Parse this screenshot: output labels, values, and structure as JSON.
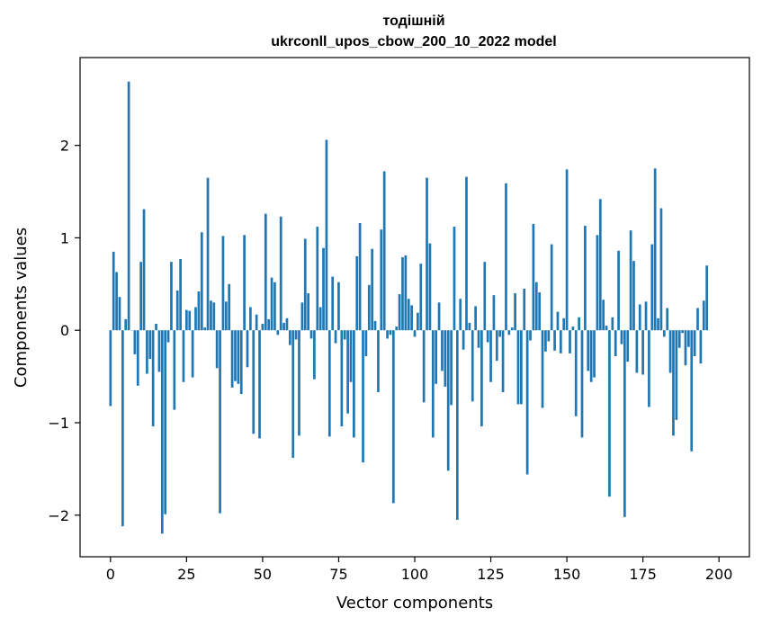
{
  "chart_data": {
    "type": "bar",
    "title_line1": "тодішній",
    "title_line2": "ukrconll_upos_cbow_200_10_2022 model",
    "xlabel": "Vector components",
    "ylabel": "Components values",
    "xlim": [
      -10,
      210
    ],
    "ylim": [
      -2.45,
      2.95
    ],
    "xticks": [
      0,
      25,
      50,
      75,
      100,
      125,
      150,
      175,
      200
    ],
    "yticks": [
      -2,
      -1,
      0,
      1,
      2
    ],
    "ytick_labels": [
      "−2",
      "−1",
      "0",
      "1",
      "2"
    ],
    "bar_color": "#1f77b4",
    "grid": false,
    "legend": "none",
    "values": [
      -0.82,
      0.85,
      0.63,
      0.36,
      -2.12,
      0.12,
      2.69,
      0.0,
      -0.26,
      -0.6,
      0.74,
      1.31,
      -0.47,
      -0.31,
      -1.04,
      0.07,
      -0.45,
      -2.2,
      -1.99,
      -0.13,
      0.74,
      -0.86,
      0.43,
      0.77,
      -0.56,
      0.22,
      0.21,
      -0.51,
      0.25,
      0.42,
      1.06,
      0.03,
      1.65,
      0.32,
      0.3,
      -0.41,
      -1.98,
      1.02,
      0.31,
      0.5,
      -0.62,
      -0.55,
      -0.58,
      -0.69,
      1.03,
      -0.4,
      0.25,
      -1.12,
      0.17,
      -1.17,
      0.07,
      1.26,
      0.12,
      0.57,
      0.52,
      -0.05,
      1.23,
      0.08,
      0.13,
      -0.16,
      -1.38,
      -0.1,
      -1.14,
      0.3,
      0.99,
      0.4,
      -0.09,
      -0.53,
      1.12,
      0.25,
      0.89,
      2.06,
      -1.15,
      0.58,
      -0.14,
      0.52,
      -1.04,
      -0.1,
      -0.9,
      -0.56,
      -1.16,
      0.8,
      1.16,
      -1.43,
      -0.28,
      0.49,
      0.88,
      0.1,
      -0.67,
      1.09,
      1.72,
      -0.09,
      -0.05,
      -1.87,
      0.04,
      0.39,
      0.79,
      0.81,
      0.34,
      0.27,
      -0.07,
      0.19,
      0.72,
      -0.78,
      1.65,
      0.94,
      -1.16,
      -0.58,
      0.3,
      -0.44,
      -0.61,
      -1.52,
      -0.81,
      1.12,
      -2.05,
      0.34,
      -0.21,
      1.66,
      0.08,
      -0.77,
      0.26,
      -0.19,
      -1.04,
      0.74,
      -0.13,
      -0.56,
      0.38,
      -0.33,
      -0.07,
      -0.67,
      1.59,
      -0.05,
      0.03,
      0.4,
      -0.8,
      -0.8,
      0.45,
      -1.56,
      -0.11,
      1.15,
      0.52,
      0.41,
      -0.84,
      -0.23,
      -0.12,
      0.93,
      -0.22,
      0.2,
      -0.25,
      0.13,
      1.74,
      -0.25,
      0.04,
      -0.93,
      0.14,
      -1.16,
      1.13,
      -0.44,
      -0.56,
      -0.51,
      1.03,
      1.42,
      0.33,
      0.05,
      -1.8,
      0.14,
      -0.28,
      0.86,
      -0.15,
      -2.02,
      -0.34,
      1.08,
      0.75,
      -0.46,
      0.28,
      -0.48,
      0.31,
      -0.83,
      0.93,
      1.75,
      0.13,
      1.32,
      -0.07,
      0.24,
      -0.46,
      -1.14,
      -0.97,
      -0.19,
      -0.03,
      -0.38,
      -0.18,
      -1.31,
      -0.28,
      0.24,
      -0.36,
      0.32,
      0.7
    ]
  }
}
